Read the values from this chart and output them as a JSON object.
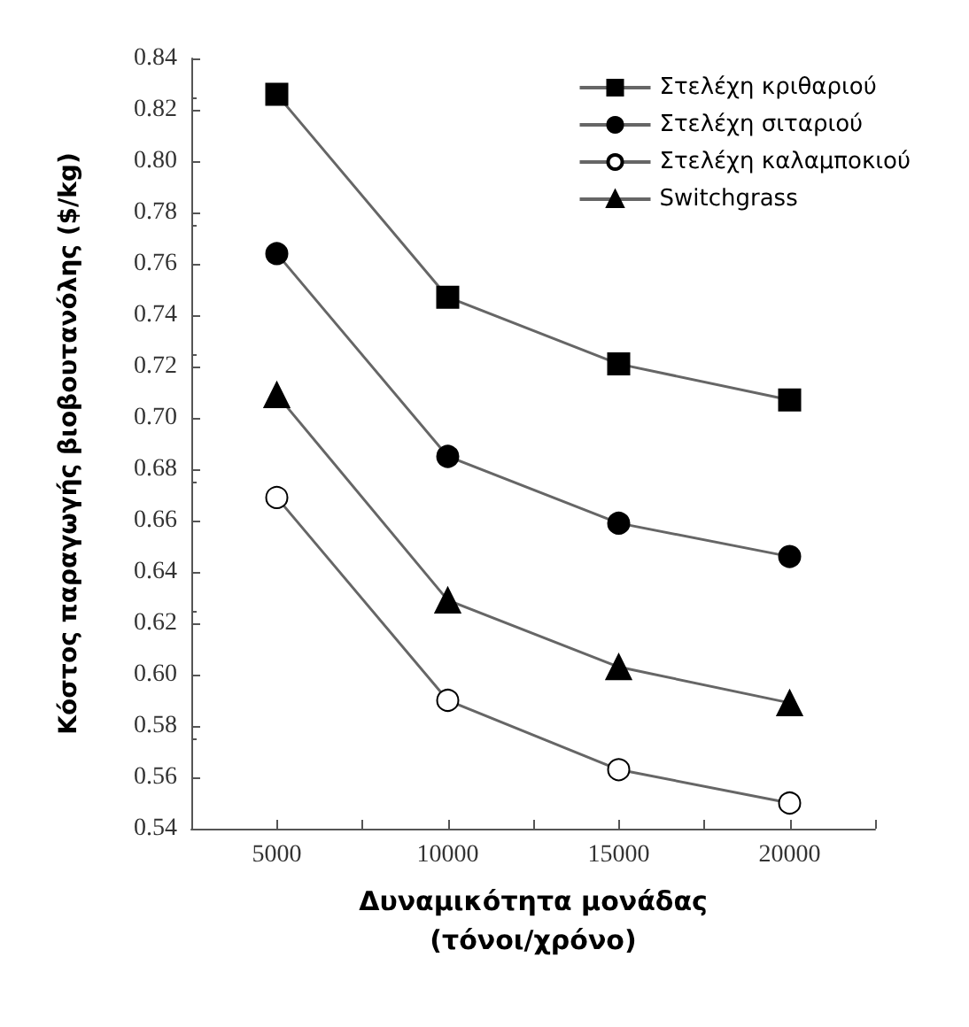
{
  "chart_data": {
    "type": "line",
    "xlabel": "Δυναμικότητα μονάδας\n(τόνοι/χρόνο)",
    "ylabel": "Κόστος παραγωγής βιοβουτανόλης ($/kg)",
    "x": [
      5000,
      10000,
      15000,
      20000
    ],
    "series": [
      {
        "name": "Στελέχη κριθαριού",
        "color": "#000000",
        "marker": "square",
        "values": [
          0.826,
          0.747,
          0.721,
          0.707
        ]
      },
      {
        "name": "Στελέχη σιταριού",
        "color": "#000000",
        "marker": "circle",
        "values": [
          0.764,
          0.685,
          0.659,
          0.646
        ]
      },
      {
        "name": "Στελέχη καλαμποκιού",
        "color": "#ffffff",
        "marker": "circle",
        "values": [
          0.669,
          0.59,
          0.563,
          0.55
        ]
      },
      {
        "name": "Switchgrass",
        "color": "#000000",
        "marker": "triangle",
        "values": [
          0.709,
          0.629,
          0.603,
          0.589
        ]
      }
    ],
    "xlim": [
      2500,
      22500
    ],
    "xticks": [
      {
        "value": 2500,
        "label": null
      },
      5000,
      {
        "value": 7500,
        "label": null
      },
      10000,
      {
        "value": 12500,
        "label": null
      },
      15000,
      {
        "value": 17500,
        "label": null
      },
      20000,
      {
        "value": 22500,
        "label": null
      }
    ],
    "ylim": [
      0.54,
      0.84
    ],
    "yticks": [
      {
        "value": 0.54,
        "label": "0.54"
      },
      {
        "value": 0.56,
        "label": "0.56"
      },
      {
        "value": 0.58,
        "label": "0.58"
      },
      {
        "value": 0.6,
        "label": "0.60"
      },
      {
        "value": 0.62,
        "label": "0.62"
      },
      {
        "value": 0.64,
        "label": "0.64"
      },
      {
        "value": 0.66,
        "label": "0.66"
      },
      {
        "value": 0.68,
        "label": "0.68"
      },
      {
        "value": 0.7,
        "label": "0.70"
      },
      {
        "value": 0.72,
        "label": "0.72"
      },
      {
        "value": 0.74,
        "label": "0.74"
      },
      {
        "value": 0.76,
        "label": "0.76"
      },
      {
        "value": 0.78,
        "label": "0.78"
      },
      {
        "value": 0.8,
        "label": "0.80"
      },
      {
        "value": 0.82,
        "label": "0.82"
      },
      {
        "value": 0.84,
        "label": "0.84"
      }
    ],
    "grid": false,
    "legend": "top right",
    "line_style": "solid"
  }
}
